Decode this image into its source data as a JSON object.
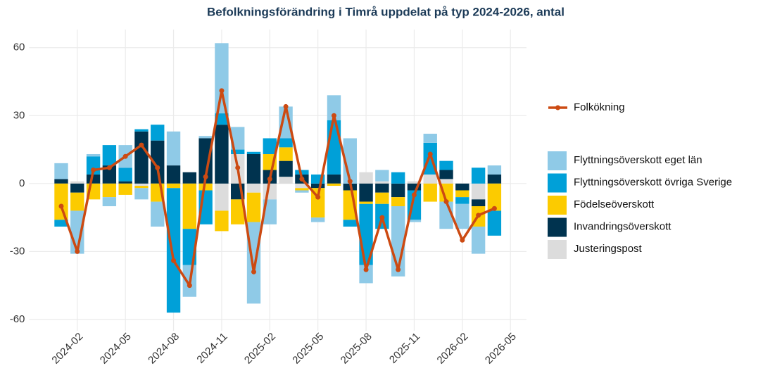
{
  "chart_data": {
    "type": "bar",
    "stacked": true,
    "title": "Befolkningsförändring i Timrå uppdelat på typ 2024-2026, antal",
    "x": [
      "2024-01",
      "2024-02",
      "2024-03",
      "2024-04",
      "2024-05",
      "2024-06",
      "2024-07",
      "2024-08",
      "2024-09",
      "2024-10",
      "2024-11",
      "2024-12",
      "2025-01",
      "2025-02",
      "2025-03",
      "2025-04",
      "2025-05",
      "2025-06",
      "2025-07",
      "2025-08",
      "2025-09",
      "2025-10",
      "2025-11",
      "2025-12",
      "2026-01",
      "2026-02",
      "2026-03",
      "2026-04"
    ],
    "series": [
      {
        "name": "Flyttningsöverskott eget län",
        "type": "bar",
        "color": "#8fcae7",
        "values": [
          7,
          -19,
          1,
          -4,
          10,
          -5,
          -11,
          15,
          -14,
          1,
          31,
          10,
          -36,
          -11,
          14,
          -1,
          -2,
          11,
          20,
          -8,
          5,
          -31,
          -1,
          4,
          -12,
          -11,
          -12,
          4
        ]
      },
      {
        "name": "Flyttningsöverskott övriga Sverige",
        "type": "bar",
        "color": "#00a0d8",
        "values": [
          -3,
          0,
          8,
          9,
          6,
          1,
          7,
          -55,
          -16,
          -15,
          5,
          2,
          1,
          7,
          4,
          2,
          4,
          24,
          -3,
          -27,
          -11,
          5,
          -13,
          14,
          4,
          -3,
          7,
          -11
        ]
      },
      {
        "name": "Födelseöverskott",
        "type": "bar",
        "color": "#fccb00",
        "values": [
          -16,
          -8,
          -7,
          -6,
          -5,
          -1,
          -8,
          -2,
          -20,
          -3,
          -9,
          -11,
          -13,
          7,
          6,
          -1,
          -13,
          -1,
          -13,
          -1,
          -5,
          -4,
          0,
          -8,
          -8,
          -3,
          -9,
          -12
        ]
      },
      {
        "name": "Invandringsöverskott",
        "type": "bar",
        "color": "#00334f",
        "values": [
          2,
          -4,
          4,
          8,
          1,
          23,
          19,
          8,
          5,
          20,
          26,
          -7,
          13,
          6,
          7,
          4,
          -2,
          4,
          -3,
          -8,
          -4,
          -6,
          -3,
          0,
          4,
          -3,
          -3,
          4
        ]
      },
      {
        "name": "Justeringspost",
        "type": "bar",
        "color": "#dcdcdc",
        "values": [
          0,
          1,
          0,
          0,
          0,
          -1,
          0,
          0,
          0,
          0,
          -12,
          13,
          -4,
          -7,
          3,
          -2,
          0,
          0,
          0,
          5,
          1,
          0,
          1,
          4,
          2,
          0,
          -7,
          0
        ]
      },
      {
        "name": "Folkökning",
        "type": "line",
        "color": "#cc4a12",
        "values": [
          -10,
          -30,
          6,
          7,
          12,
          17,
          7,
          -34,
          -45,
          3,
          41,
          7,
          -39,
          2,
          34,
          2,
          -6,
          30,
          1,
          -38,
          -15,
          -38,
          -5,
          13,
          -8,
          -25,
          -14,
          -11
        ]
      }
    ],
    "xlim": [
      "2023-11",
      "2026-06"
    ],
    "xticks": [
      "2024-02",
      "2024-05",
      "2024-08",
      "2024-11",
      "2025-02",
      "2025-05",
      "2025-08",
      "2025-11",
      "2026-02",
      "2026-05"
    ],
    "ylim": [
      -65,
      68
    ],
    "yticks": [
      -60,
      -30,
      0,
      30,
      60
    ],
    "grid": true
  }
}
